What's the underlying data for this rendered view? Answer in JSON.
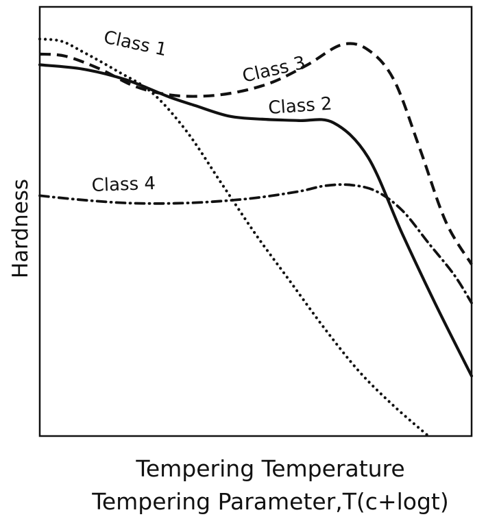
{
  "chart_data": {
    "type": "line",
    "xlabel": "Tempering Temperature",
    "xlabel2": "Tempering Parameter,T(c+logt)",
    "ylabel": "Hardness",
    "xlim": [
      0,
      100
    ],
    "ylim": [
      0,
      100
    ],
    "grid": false,
    "series": [
      {
        "name": "Class 1",
        "style": "dotted",
        "x": [
          0,
          5,
          10,
          18,
          26,
          34,
          42,
          50,
          58,
          66,
          74,
          82,
          90
        ],
        "y": [
          92.5,
          92,
          89.5,
          85,
          80,
          71,
          59,
          47,
          36,
          25,
          15,
          7,
          0
        ]
      },
      {
        "name": "Class 2",
        "style": "solid",
        "x": [
          0,
          10,
          20,
          30,
          36,
          44,
          52,
          60,
          68,
          76,
          84,
          92,
          100
        ],
        "y": [
          86.5,
          85.5,
          83,
          79,
          77,
          74.5,
          73.8,
          73.5,
          73,
          65,
          47,
          30,
          14
        ]
      },
      {
        "name": "Class 3",
        "style": "dashed",
        "x": [
          0,
          6,
          14,
          22,
          30,
          38,
          46,
          54,
          62,
          70,
          76,
          82,
          88,
          94,
          100
        ],
        "y": [
          89,
          88.5,
          85.5,
          81.5,
          79.5,
          79.2,
          80.2,
          82.5,
          86.5,
          91.2,
          90,
          83,
          67,
          50,
          40
        ]
      },
      {
        "name": "Class 4",
        "style": "dashdot",
        "x": [
          0,
          10,
          20,
          30,
          40,
          50,
          60,
          66,
          72,
          78,
          84,
          90,
          96,
          100
        ],
        "y": [
          56,
          55,
          54.3,
          54.2,
          54.6,
          55.5,
          57,
          58.3,
          58.5,
          57,
          52.5,
          45,
          37.5,
          31
        ]
      }
    ]
  }
}
